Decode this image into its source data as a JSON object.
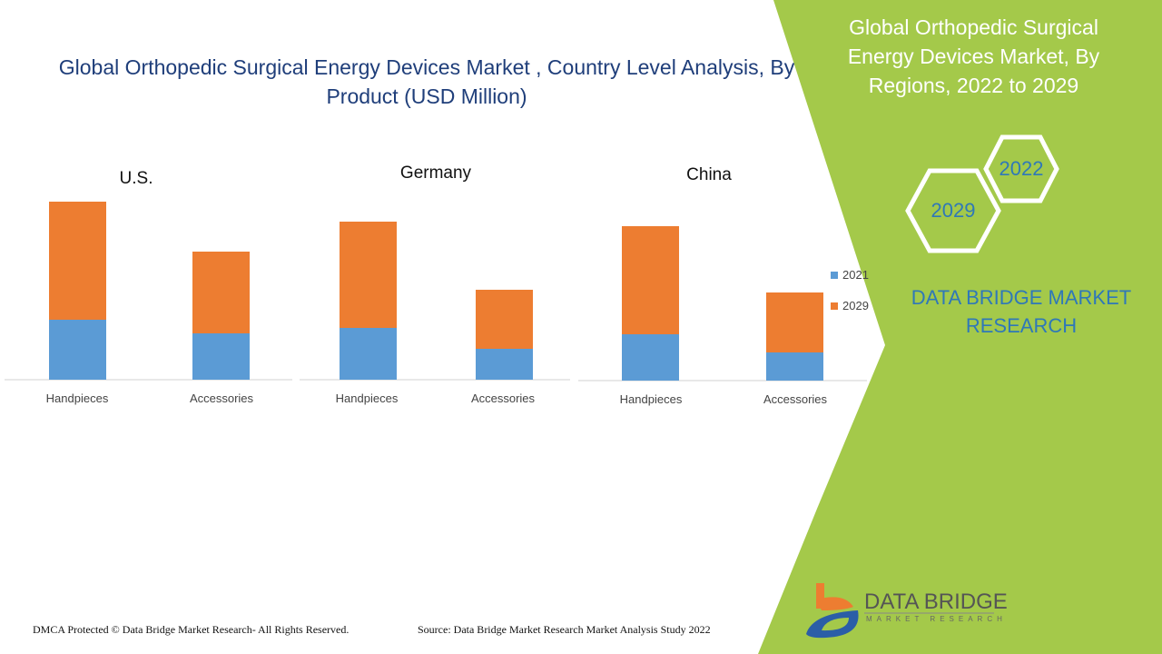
{
  "header": {
    "title": "Global Orthopedic Surgical Energy Devices Market , Country Level Analysis, By Product (USD Million)"
  },
  "side_panel": {
    "title": "Global Orthopedic Surgical Energy Devices Market, By Regions, 2022 to 2029",
    "hex_labels": [
      "2022",
      "2029"
    ],
    "brand": "DATA BRIDGE MARKET RESEARCH",
    "logo_main": "DATA BRIDGE",
    "logo_sub": "MARKET RESEARCH"
  },
  "footer": {
    "copyright": "DMCA Protected © Data Bridge Market Research- All Rights Reserved.",
    "source": "Source: Data Bridge Market Research Market Analysis Study 2022"
  },
  "colors": {
    "s2021": "#5b9bd5",
    "s2029": "#ed7d31",
    "panel": "#a4c94a",
    "brand": "#2f78b8"
  },
  "legend": [
    "2021",
    "2029"
  ],
  "chart_data": [
    {
      "type": "bar",
      "stacked": true,
      "title": "U.S.",
      "categories": [
        "Handpieces",
        "Accessories"
      ],
      "series": [
        {
          "name": "2021",
          "values": [
            66,
            51
          ]
        },
        {
          "name": "2029",
          "values": [
            130,
            90
          ]
        }
      ],
      "ylim": [
        0,
        200
      ],
      "grid": false
    },
    {
      "type": "bar",
      "stacked": true,
      "title": "Germany",
      "categories": [
        "Handpieces",
        "Accessories"
      ],
      "series": [
        {
          "name": "2021",
          "values": [
            57,
            34
          ]
        },
        {
          "name": "2029",
          "values": [
            117,
            65
          ]
        }
      ],
      "ylim": [
        0,
        200
      ],
      "grid": false
    },
    {
      "type": "bar",
      "stacked": true,
      "title": "China",
      "categories": [
        "Handpieces",
        "Accessories"
      ],
      "series": [
        {
          "name": "2021",
          "values": [
            51,
            31
          ]
        },
        {
          "name": "2029",
          "values": [
            119,
            66
          ]
        }
      ],
      "ylim": [
        0,
        200
      ],
      "grid": false
    }
  ]
}
